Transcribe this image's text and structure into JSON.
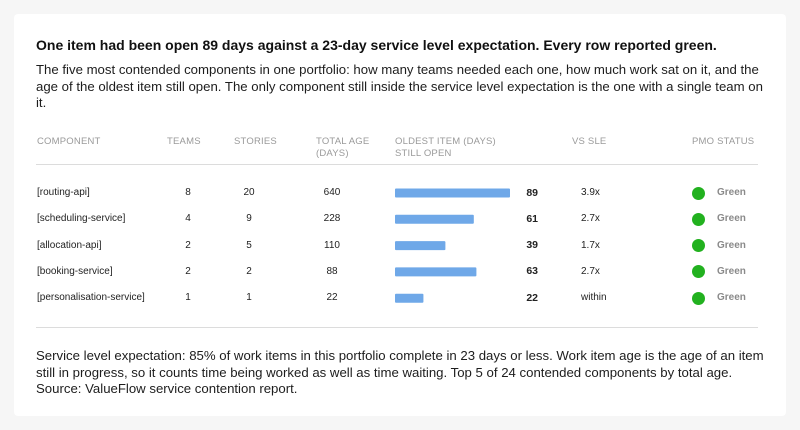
{
  "headline": "One item had been open 89 days against a 23-day service level expectation. Every row reported green.",
  "intro": "The five most contended components in one portfolio: how many teams needed each one, how much work sat on it, and the age of the oldest item still open. The only component still inside the service level expectation is the one with a single team on it.",
  "columns": {
    "component": "COMPONENT",
    "teams": "TEAMS",
    "stories": "STORIES",
    "total_age_1": "TOTAL AGE",
    "total_age_2": "(DAYS)",
    "oldest_1": "OLDEST ITEM (DAYS)",
    "oldest_2": "STILL OPEN",
    "vs_sle": "VS SLE",
    "pmo_status": "PMO STATUS"
  },
  "colors": {
    "bar": "#6fa8e8",
    "status_green": "#22b11f"
  },
  "chart_data": {
    "type": "table",
    "bar_column": "oldest_open_days",
    "bar_max": 89,
    "rows": [
      {
        "component": "[routing-api]",
        "teams": "8",
        "stories": "20",
        "total_age": "640",
        "oldest_open_days": 89,
        "vs_sle": "3.9x",
        "pmo_status": "Green"
      },
      {
        "component": "[scheduling-service]",
        "teams": "4",
        "stories": "9",
        "total_age": "228",
        "oldest_open_days": 61,
        "vs_sle": "2.7x",
        "pmo_status": "Green"
      },
      {
        "component": "[allocation-api]",
        "teams": "2",
        "stories": "5",
        "total_age": "110",
        "oldest_open_days": 39,
        "vs_sle": "1.7x",
        "pmo_status": "Green"
      },
      {
        "component": "[booking-service]",
        "teams": "2",
        "stories": "2",
        "total_age": "88",
        "oldest_open_days": 63,
        "vs_sle": "2.7x",
        "pmo_status": "Green"
      },
      {
        "component": "[personalisation-service]",
        "teams": "1",
        "stories": "1",
        "total_age": "22",
        "oldest_open_days": 22,
        "vs_sle": "within",
        "pmo_status": "Green"
      }
    ]
  },
  "footnote": "Service level expectation: 85% of work items in this portfolio complete in 23 days or less. Work item age is the age of an item still in progress, so it counts time being worked as well as time waiting. Top 5 of 24 contended components by total age. Source: ValueFlow service contention report."
}
